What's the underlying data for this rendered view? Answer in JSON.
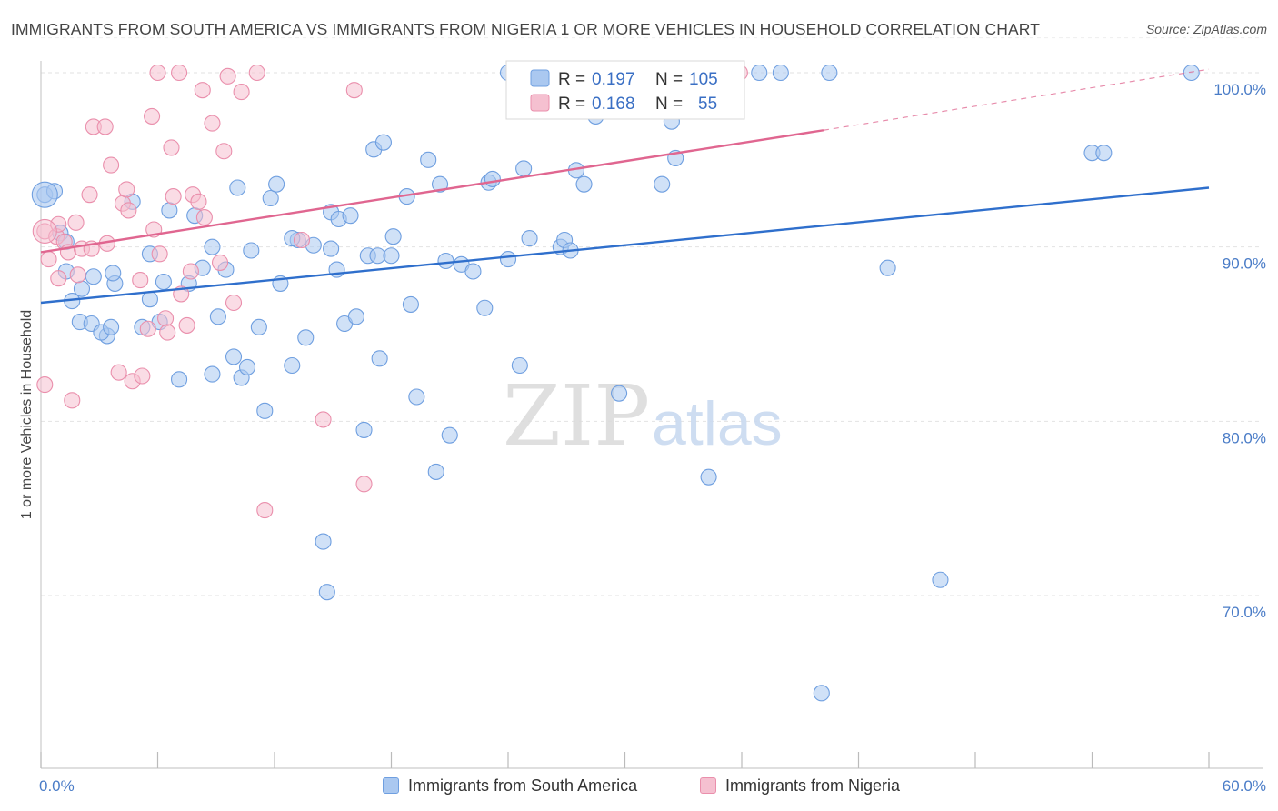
{
  "title": "IMMIGRANTS FROM SOUTH AMERICA VS IMMIGRANTS FROM NIGERIA 1 OR MORE VEHICLES IN HOUSEHOLD CORRELATION CHART",
  "source": "Source: ZipAtlas.com",
  "watermark": {
    "zip": "ZIP",
    "atlas": "atlas"
  },
  "legend": {
    "rows": [
      {
        "r_label": "R = ",
        "r_value": "0.197",
        "n_label": "N = ",
        "n_value": "105"
      },
      {
        "r_label": "R = ",
        "r_value": "0.168",
        "n_label": "N = ",
        "n_value": "55"
      }
    ]
  },
  "bottom_legend": [
    "Immigrants from South America",
    "Immigrants from Nigeria"
  ],
  "chart_data": {
    "type": "scatter",
    "ylabel": "1 or more Vehicles in Household",
    "xlim": [
      0,
      60
    ],
    "ylim": [
      60,
      102
    ],
    "x_tick_labels": [
      {
        "x": 0,
        "label": "0.0%"
      },
      {
        "x": 60,
        "label": "60.0%"
      }
    ],
    "y_tick_labels": [
      {
        "y": 100,
        "label": "100.0%"
      },
      {
        "y": 90,
        "label": "90.0%"
      },
      {
        "y": 80,
        "label": "80.0%"
      },
      {
        "y": 70,
        "label": "70.0%"
      }
    ],
    "x_minor_ticks": [
      0,
      6,
      12,
      18,
      24,
      30,
      36,
      42,
      48,
      54,
      60
    ],
    "colors": {
      "south_america": "#6f9fe0",
      "south_america_fill": "#aac8f0",
      "nigeria": "#ea8fac",
      "nigeria_fill": "#f5c0d0",
      "blue_line": "#2f6fcc",
      "pink_line": "#e06690",
      "tick_label": "#4a7cc7"
    },
    "series": [
      {
        "name": "Immigrants from South America",
        "r": 0.197,
        "n": 105,
        "trend": {
          "x": [
            0,
            60
          ],
          "y": [
            86.8,
            93.4
          ]
        },
        "points": [
          [
            0.2,
            93.0
          ],
          [
            0.7,
            93.2
          ],
          [
            1.0,
            90.8
          ],
          [
            1.3,
            90.3
          ],
          [
            1.3,
            88.6
          ],
          [
            1.6,
            86.9
          ],
          [
            2.1,
            87.6
          ],
          [
            2.0,
            85.7
          ],
          [
            2.7,
            88.3
          ],
          [
            2.6,
            85.6
          ],
          [
            3.4,
            84.9
          ],
          [
            3.1,
            85.1
          ],
          [
            3.6,
            85.4
          ],
          [
            3.8,
            87.9
          ],
          [
            4.7,
            92.6
          ],
          [
            5.6,
            87.0
          ],
          [
            5.2,
            85.4
          ],
          [
            6.1,
            85.7
          ],
          [
            6.3,
            88.0
          ],
          [
            6.6,
            92.1
          ],
          [
            7.1,
            82.4
          ],
          [
            7.6,
            87.9
          ],
          [
            7.9,
            91.8
          ],
          [
            8.3,
            88.8
          ],
          [
            8.8,
            82.7
          ],
          [
            8.8,
            90.0
          ],
          [
            9.1,
            86.0
          ],
          [
            9.5,
            88.7
          ],
          [
            9.9,
            83.7
          ],
          [
            10.1,
            93.4
          ],
          [
            10.3,
            82.5
          ],
          [
            10.6,
            83.1
          ],
          [
            10.8,
            89.8
          ],
          [
            11.2,
            85.4
          ],
          [
            11.5,
            80.6
          ],
          [
            11.8,
            92.8
          ],
          [
            12.1,
            93.6
          ],
          [
            12.3,
            87.9
          ],
          [
            12.9,
            83.2
          ],
          [
            13.2,
            90.4
          ],
          [
            13.6,
            84.8
          ],
          [
            14.0,
            90.1
          ],
          [
            14.5,
            73.1
          ],
          [
            14.7,
            70.2
          ],
          [
            14.9,
            92.0
          ],
          [
            15.2,
            88.7
          ],
          [
            15.3,
            91.6
          ],
          [
            15.6,
            85.6
          ],
          [
            15.9,
            91.8
          ],
          [
            16.2,
            86.0
          ],
          [
            16.6,
            79.5
          ],
          [
            16.8,
            89.5
          ],
          [
            17.1,
            95.6
          ],
          [
            17.3,
            89.5
          ],
          [
            17.4,
            83.6
          ],
          [
            17.6,
            96.0
          ],
          [
            18.0,
            89.5
          ],
          [
            18.1,
            90.6
          ],
          [
            18.8,
            92.9
          ],
          [
            19.0,
            86.7
          ],
          [
            19.3,
            81.4
          ],
          [
            19.9,
            95.0
          ],
          [
            20.3,
            77.1
          ],
          [
            20.5,
            93.6
          ],
          [
            20.8,
            89.2
          ],
          [
            21.0,
            79.2
          ],
          [
            21.6,
            89.0
          ],
          [
            22.2,
            88.6
          ],
          [
            22.8,
            86.5
          ],
          [
            23.0,
            93.7
          ],
          [
            23.2,
            93.9
          ],
          [
            24.0,
            89.3
          ],
          [
            24.6,
            83.2
          ],
          [
            24.8,
            94.5
          ],
          [
            25.1,
            90.5
          ],
          [
            26.0,
            100.0
          ],
          [
            26.7,
            90.0
          ],
          [
            26.9,
            90.4
          ],
          [
            27.2,
            89.8
          ],
          [
            27.5,
            94.4
          ],
          [
            27.9,
            93.6
          ],
          [
            28.5,
            97.5
          ],
          [
            29.7,
            81.6
          ],
          [
            30.5,
            98.2
          ],
          [
            31.9,
            93.6
          ],
          [
            32.4,
            97.2
          ],
          [
            32.6,
            95.1
          ],
          [
            34.3,
            76.8
          ],
          [
            36.9,
            100.0
          ],
          [
            38.0,
            100.0
          ],
          [
            40.1,
            64.4
          ],
          [
            40.5,
            100.0
          ],
          [
            43.5,
            88.8
          ],
          [
            46.2,
            70.9
          ],
          [
            54.0,
            95.4
          ],
          [
            54.6,
            95.4
          ],
          [
            59.1,
            100.0
          ],
          [
            24.0,
            100.0
          ],
          [
            25.5,
            100.0
          ],
          [
            28.0,
            100.0
          ],
          [
            30.0,
            98.8
          ],
          [
            14.9,
            89.9
          ],
          [
            12.9,
            90.5
          ],
          [
            5.6,
            89.6
          ],
          [
            3.7,
            88.5
          ]
        ]
      },
      {
        "name": "Immigrants from Nigeria",
        "r": 0.168,
        "n": 55,
        "trend": {
          "x": [
            0,
            40.2
          ],
          "y": [
            89.7,
            96.7
          ],
          "dashed_to": {
            "x": 60,
            "y": 100.2
          }
        },
        "points": [
          [
            0.2,
            90.9
          ],
          [
            0.2,
            82.1
          ],
          [
            0.4,
            89.3
          ],
          [
            0.8,
            90.6
          ],
          [
            0.9,
            91.3
          ],
          [
            0.9,
            88.2
          ],
          [
            1.2,
            90.3
          ],
          [
            1.4,
            89.7
          ],
          [
            1.6,
            81.2
          ],
          [
            1.8,
            91.4
          ],
          [
            1.9,
            88.4
          ],
          [
            2.1,
            89.9
          ],
          [
            2.5,
            93.0
          ],
          [
            2.6,
            89.9
          ],
          [
            2.7,
            96.9
          ],
          [
            3.3,
            96.9
          ],
          [
            3.4,
            90.2
          ],
          [
            3.6,
            94.7
          ],
          [
            4.0,
            82.8
          ],
          [
            4.2,
            92.5
          ],
          [
            4.4,
            93.3
          ],
          [
            4.5,
            92.1
          ],
          [
            4.7,
            82.3
          ],
          [
            5.1,
            88.1
          ],
          [
            5.2,
            82.6
          ],
          [
            5.5,
            85.3
          ],
          [
            5.7,
            97.5
          ],
          [
            5.8,
            91.0
          ],
          [
            6.1,
            89.6
          ],
          [
            6.4,
            85.9
          ],
          [
            6.5,
            85.1
          ],
          [
            6.7,
            95.7
          ],
          [
            6.8,
            92.9
          ],
          [
            7.2,
            87.3
          ],
          [
            7.5,
            85.5
          ],
          [
            7.7,
            88.6
          ],
          [
            7.8,
            93.0
          ],
          [
            8.1,
            92.6
          ],
          [
            8.3,
            99.0
          ],
          [
            8.4,
            91.7
          ],
          [
            8.8,
            97.1
          ],
          [
            9.2,
            89.1
          ],
          [
            9.4,
            95.5
          ],
          [
            9.6,
            99.8
          ],
          [
            9.9,
            86.8
          ],
          [
            10.3,
            98.9
          ],
          [
            11.1,
            100.0
          ],
          [
            11.5,
            74.9
          ],
          [
            13.4,
            90.4
          ],
          [
            14.5,
            80.1
          ],
          [
            16.1,
            99.0
          ],
          [
            16.6,
            76.4
          ],
          [
            35.9,
            100.0
          ],
          [
            6.0,
            100.0
          ],
          [
            7.1,
            100.0
          ]
        ]
      }
    ]
  }
}
